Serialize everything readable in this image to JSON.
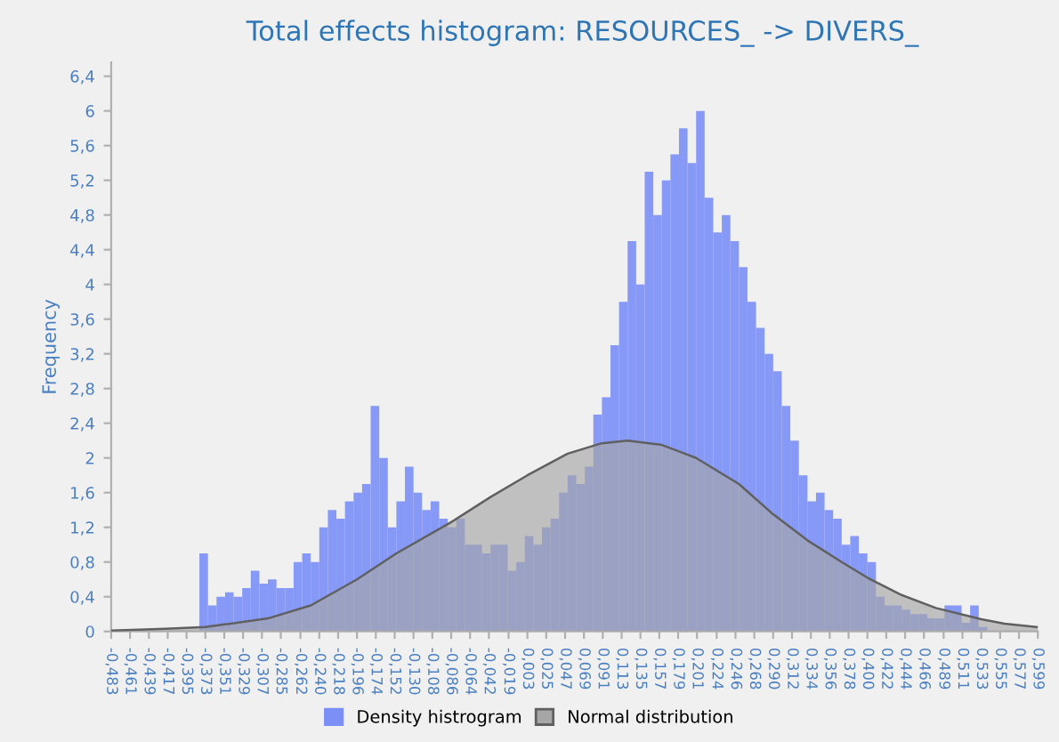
{
  "chart_data": {
    "type": "histogram",
    "title": "Total effects histogram: RESOURCES_ -> DIVERS_",
    "ylabel": "Frequency",
    "bins": [
      -0.38,
      -0.37,
      -0.36,
      -0.35,
      -0.34,
      -0.33,
      -0.32,
      -0.31,
      -0.3,
      -0.29,
      -0.28,
      -0.27,
      -0.26,
      -0.25,
      -0.24,
      -0.23,
      -0.22,
      -0.21,
      -0.2,
      -0.19,
      -0.18,
      -0.17,
      -0.16,
      -0.15,
      -0.14,
      -0.13,
      -0.12,
      -0.11,
      -0.1,
      -0.09,
      -0.08,
      -0.07,
      -0.06,
      -0.05,
      -0.04,
      -0.03,
      -0.02,
      -0.01,
      0.0,
      0.01,
      0.02,
      0.03,
      0.04,
      0.05,
      0.06,
      0.07,
      0.08,
      0.09,
      0.1,
      0.11,
      0.12,
      0.13,
      0.14,
      0.15,
      0.16,
      0.17,
      0.18,
      0.19,
      0.2,
      0.21,
      0.22,
      0.23,
      0.24,
      0.25,
      0.26,
      0.27,
      0.28,
      0.29,
      0.3,
      0.31,
      0.32,
      0.33,
      0.34,
      0.35,
      0.36,
      0.37,
      0.38,
      0.39,
      0.4,
      0.41,
      0.42,
      0.43,
      0.44,
      0.45,
      0.46,
      0.47,
      0.48,
      0.49,
      0.5,
      0.51,
      0.52,
      0.53,
      0.54
    ],
    "series": [
      {
        "name": "Density histrogram",
        "color": "#7b8ff7",
        "values": [
          0.9,
          0.3,
          0.4,
          0.45,
          0.4,
          0.5,
          0.7,
          0.55,
          0.6,
          0.5,
          0.5,
          0.8,
          0.9,
          0.8,
          1.2,
          1.4,
          1.3,
          1.5,
          1.6,
          1.7,
          2.6,
          2.0,
          1.2,
          1.5,
          1.9,
          1.6,
          1.4,
          1.5,
          1.3,
          1.2,
          1.3,
          1.0,
          1.0,
          0.9,
          1.0,
          1.0,
          0.7,
          0.8,
          1.1,
          1.0,
          1.2,
          1.3,
          1.6,
          1.8,
          1.7,
          1.9,
          2.5,
          2.7,
          3.3,
          3.8,
          4.5,
          4.0,
          5.3,
          4.8,
          5.2,
          5.5,
          5.8,
          5.4,
          6.0,
          5.0,
          4.6,
          4.8,
          4.5,
          4.2,
          3.8,
          3.5,
          3.2,
          3.0,
          2.6,
          2.2,
          1.8,
          1.5,
          1.6,
          1.4,
          1.3,
          1.0,
          1.1,
          0.9,
          0.8,
          0.4,
          0.3,
          0.3,
          0.25,
          0.2,
          0.2,
          0.15,
          0.15,
          0.3,
          0.3,
          0.1,
          0.3,
          0.05
        ]
      },
      {
        "name": "Normal distribution",
        "type": "area",
        "color": "#a6a6a6",
        "x": [
          -0.483,
          -0.42,
          -0.373,
          -0.3,
          -0.25,
          -0.196,
          -0.15,
          -0.086,
          -0.04,
          0.003,
          0.05,
          0.09,
          0.12,
          0.16,
          0.2,
          0.25,
          0.29,
          0.33,
          0.37,
          0.4,
          0.44,
          0.48,
          0.533,
          0.56,
          0.599
        ],
        "values": [
          0.01,
          0.03,
          0.05,
          0.15,
          0.3,
          0.6,
          0.9,
          1.26,
          1.55,
          1.8,
          2.05,
          2.17,
          2.2,
          2.15,
          2.0,
          1.7,
          1.35,
          1.05,
          0.8,
          0.62,
          0.42,
          0.27,
          0.14,
          0.09,
          0.05
        ]
      }
    ],
    "xlim": [
      -0.483,
      0.599
    ],
    "xticks": [
      {
        "value": -0.483,
        "label": "-0,483"
      },
      {
        "value": -0.461,
        "label": "-0,461"
      },
      {
        "value": -0.439,
        "label": "-0,439"
      },
      {
        "value": -0.417,
        "label": "-0,417"
      },
      {
        "value": -0.395,
        "label": "-0,395"
      },
      {
        "value": -0.373,
        "label": "-0,373"
      },
      {
        "value": -0.351,
        "label": "-0,351"
      },
      {
        "value": -0.329,
        "label": "-0,329"
      },
      {
        "value": -0.307,
        "label": "-0,307"
      },
      {
        "value": -0.285,
        "label": "-0,285"
      },
      {
        "value": -0.262,
        "label": "-0,262"
      },
      {
        "value": -0.24,
        "label": "-0,240"
      },
      {
        "value": -0.218,
        "label": "-0,218"
      },
      {
        "value": -0.196,
        "label": "-0,196"
      },
      {
        "value": -0.174,
        "label": "-0,174"
      },
      {
        "value": -0.152,
        "label": "-0,152"
      },
      {
        "value": -0.13,
        "label": "-0,130"
      },
      {
        "value": -0.108,
        "label": "-0,108"
      },
      {
        "value": -0.086,
        "label": "-0,086"
      },
      {
        "value": -0.064,
        "label": "-0,064"
      },
      {
        "value": -0.042,
        "label": "-0,042"
      },
      {
        "value": -0.019,
        "label": "-0,019"
      },
      {
        "value": 0.003,
        "label": "0,003"
      },
      {
        "value": 0.025,
        "label": "0,025"
      },
      {
        "value": 0.047,
        "label": "0,047"
      },
      {
        "value": 0.069,
        "label": "0,069"
      },
      {
        "value": 0.091,
        "label": "0,091"
      },
      {
        "value": 0.113,
        "label": "0,113"
      },
      {
        "value": 0.135,
        "label": "0,135"
      },
      {
        "value": 0.157,
        "label": "0,157"
      },
      {
        "value": 0.179,
        "label": "0,179"
      },
      {
        "value": 0.201,
        "label": "0,201"
      },
      {
        "value": 0.224,
        "label": "0,224"
      },
      {
        "value": 0.246,
        "label": "0,246"
      },
      {
        "value": 0.268,
        "label": "0,268"
      },
      {
        "value": 0.29,
        "label": "0,290"
      },
      {
        "value": 0.312,
        "label": "0,312"
      },
      {
        "value": 0.334,
        "label": "0,334"
      },
      {
        "value": 0.356,
        "label": "0,356"
      },
      {
        "value": 0.378,
        "label": "0,378"
      },
      {
        "value": 0.4,
        "label": "0,400"
      },
      {
        "value": 0.422,
        "label": "0,422"
      },
      {
        "value": 0.444,
        "label": "0,444"
      },
      {
        "value": 0.466,
        "label": "0,466"
      },
      {
        "value": 0.489,
        "label": "0,489"
      },
      {
        "value": 0.511,
        "label": "0,511"
      },
      {
        "value": 0.533,
        "label": "0,533"
      },
      {
        "value": 0.555,
        "label": "0,555"
      },
      {
        "value": 0.577,
        "label": "0,577"
      },
      {
        "value": 0.599,
        "label": "0,599"
      }
    ],
    "ylim": [
      0,
      6.56
    ],
    "yticks": [
      0,
      {
        "value": 0.4,
        "label": "0,4"
      },
      {
        "value": 0.8,
        "label": "0,8"
      },
      {
        "value": 1.2,
        "label": "1,2"
      },
      {
        "value": 1.6,
        "label": "1,6"
      },
      2,
      {
        "value": 2.4,
        "label": "2,4"
      },
      {
        "value": 2.8,
        "label": "2,8"
      },
      {
        "value": 3.2,
        "label": "3,2"
      },
      {
        "value": 3.6,
        "label": "3,6"
      },
      4,
      {
        "value": 4.4,
        "label": "4,4"
      },
      {
        "value": 4.8,
        "label": "4,8"
      },
      {
        "value": 5.2,
        "label": "5,2"
      },
      {
        "value": 5.6,
        "label": "5,6"
      },
      6,
      {
        "value": 6.4,
        "label": "6,4"
      }
    ],
    "legend": "bottom",
    "grid": false
  }
}
